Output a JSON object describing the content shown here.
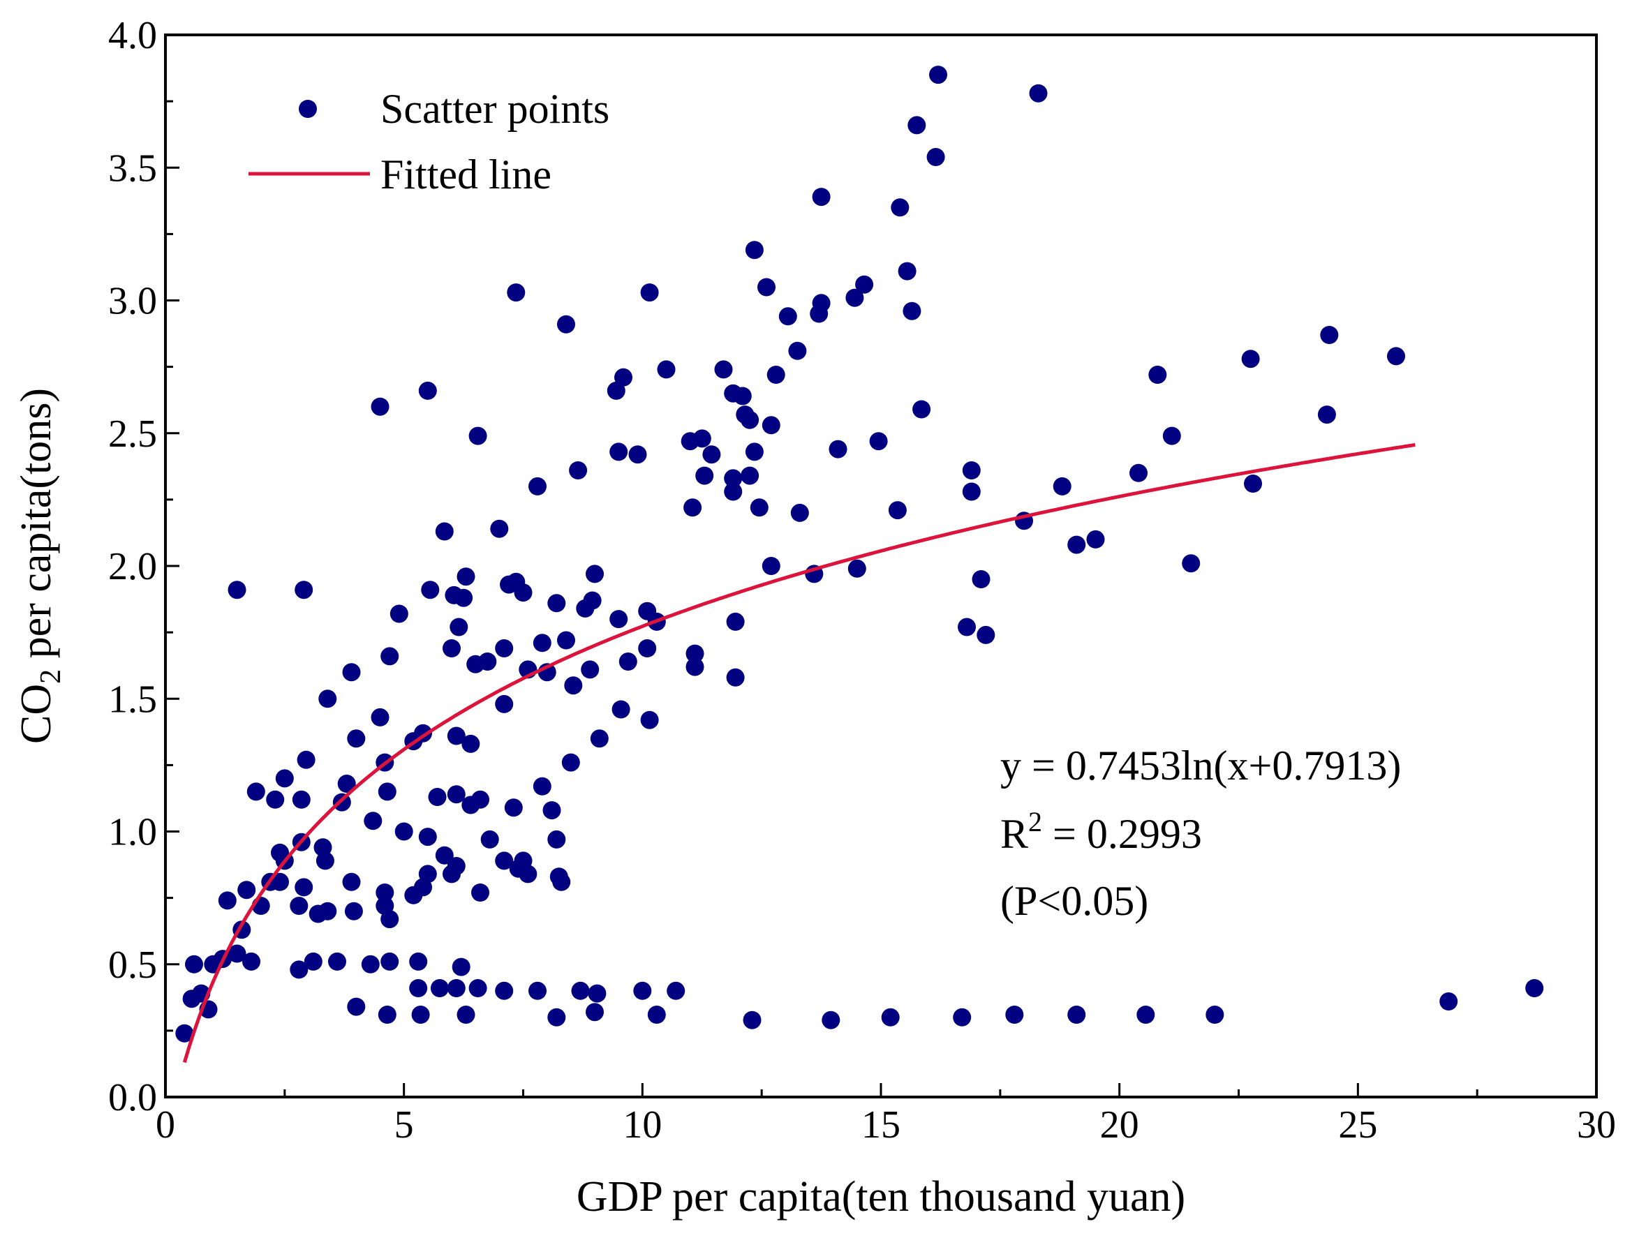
{
  "chart_data": {
    "type": "scatter",
    "xlabel": "GDP per capita(ten thousand yuan)",
    "ylabel_prefix": "CO",
    "ylabel_sub": "2",
    "ylabel_suffix": " per capita(tons)",
    "xlim": [
      0,
      30
    ],
    "ylim": [
      0,
      4.0
    ],
    "xticks": [
      "0",
      "5",
      "10",
      "15",
      "20",
      "25",
      "30"
    ],
    "yticks": [
      "0.0",
      "0.5",
      "1.0",
      "1.5",
      "2.0",
      "2.5",
      "3.0",
      "3.5",
      "4.0"
    ],
    "grid": false,
    "legend_position": "top-left",
    "colors": {
      "points": "#000080",
      "line": "#dc143c",
      "axes": "#000000"
    },
    "series": [
      {
        "name": "Scatter points",
        "kind": "scatter",
        "points": [
          [
            0.4,
            0.24
          ],
          [
            0.55,
            0.37
          ],
          [
            0.6,
            0.5
          ],
          [
            0.75,
            0.39
          ],
          [
            0.9,
            0.33
          ],
          [
            1.0,
            0.5
          ],
          [
            1.2,
            0.52
          ],
          [
            1.3,
            0.74
          ],
          [
            1.5,
            0.54
          ],
          [
            1.6,
            0.63
          ],
          [
            1.5,
            1.91
          ],
          [
            1.7,
            0.78
          ],
          [
            1.8,
            0.51
          ],
          [
            1.9,
            1.15
          ],
          [
            2.0,
            0.72
          ],
          [
            2.2,
            0.81
          ],
          [
            2.3,
            1.12
          ],
          [
            2.4,
            0.81
          ],
          [
            2.4,
            0.92
          ],
          [
            2.5,
            1.2
          ],
          [
            2.5,
            0.89
          ],
          [
            2.8,
            0.72
          ],
          [
            2.8,
            0.48
          ],
          [
            2.85,
            0.96
          ],
          [
            2.85,
            1.12
          ],
          [
            2.9,
            1.91
          ],
          [
            2.9,
            0.79
          ],
          [
            2.95,
            1.27
          ],
          [
            3.1,
            0.51
          ],
          [
            3.2,
            0.69
          ],
          [
            3.3,
            0.94
          ],
          [
            3.35,
            0.89
          ],
          [
            3.4,
            1.5
          ],
          [
            3.4,
            0.7
          ],
          [
            3.6,
            0.51
          ],
          [
            3.7,
            1.11
          ],
          [
            3.8,
            1.18
          ],
          [
            3.9,
            1.6
          ],
          [
            3.9,
            0.81
          ],
          [
            3.95,
            0.7
          ],
          [
            4.0,
            1.35
          ],
          [
            4.0,
            0.34
          ],
          [
            4.3,
            0.5
          ],
          [
            4.35,
            1.04
          ],
          [
            4.5,
            1.43
          ],
          [
            4.5,
            2.6
          ],
          [
            4.6,
            1.26
          ],
          [
            4.6,
            0.77
          ],
          [
            4.6,
            0.72
          ],
          [
            4.65,
            1.15
          ],
          [
            4.65,
            0.31
          ],
          [
            4.7,
            0.67
          ],
          [
            4.7,
            1.66
          ],
          [
            4.7,
            0.51
          ],
          [
            4.9,
            1.82
          ],
          [
            5.0,
            1.0
          ],
          [
            5.2,
            1.34
          ],
          [
            5.2,
            0.76
          ],
          [
            5.3,
            0.51
          ],
          [
            5.3,
            0.41
          ],
          [
            5.35,
            0.31
          ],
          [
            5.4,
            1.37
          ],
          [
            5.4,
            0.79
          ],
          [
            5.5,
            2.66
          ],
          [
            5.5,
            0.98
          ],
          [
            5.5,
            0.84
          ],
          [
            5.55,
            1.91
          ],
          [
            5.7,
            1.13
          ],
          [
            5.75,
            0.41
          ],
          [
            5.85,
            2.13
          ],
          [
            5.85,
            0.91
          ],
          [
            6.0,
            0.84
          ],
          [
            6.0,
            1.69
          ],
          [
            6.05,
            1.89
          ],
          [
            6.1,
            0.87
          ],
          [
            6.1,
            1.36
          ],
          [
            6.1,
            1.14
          ],
          [
            6.1,
            0.41
          ],
          [
            6.15,
            1.77
          ],
          [
            6.2,
            0.49
          ],
          [
            6.25,
            1.88
          ],
          [
            6.3,
            0.31
          ],
          [
            6.3,
            1.96
          ],
          [
            6.4,
            1.33
          ],
          [
            6.4,
            1.1
          ],
          [
            6.5,
            1.63
          ],
          [
            6.55,
            2.49
          ],
          [
            6.55,
            0.41
          ],
          [
            6.6,
            1.12
          ],
          [
            6.6,
            0.77
          ],
          [
            6.75,
            1.64
          ],
          [
            6.8,
            0.97
          ],
          [
            7.0,
            2.14
          ],
          [
            7.1,
            1.69
          ],
          [
            7.1,
            1.48
          ],
          [
            7.1,
            0.89
          ],
          [
            7.1,
            0.4
          ],
          [
            7.2,
            1.93
          ],
          [
            7.3,
            1.09
          ],
          [
            7.35,
            3.03
          ],
          [
            7.35,
            1.94
          ],
          [
            7.4,
            0.86
          ],
          [
            7.5,
            1.9
          ],
          [
            7.5,
            0.89
          ],
          [
            7.6,
            1.61
          ],
          [
            7.6,
            0.84
          ],
          [
            7.8,
            2.3
          ],
          [
            7.8,
            0.4
          ],
          [
            7.9,
            1.71
          ],
          [
            7.9,
            1.17
          ],
          [
            8.0,
            1.6
          ],
          [
            8.1,
            1.08
          ],
          [
            8.2,
            1.86
          ],
          [
            8.2,
            0.97
          ],
          [
            8.2,
            0.3
          ],
          [
            8.25,
            0.83
          ],
          [
            8.3,
            0.81
          ],
          [
            8.4,
            2.91
          ],
          [
            8.4,
            1.72
          ],
          [
            8.5,
            1.26
          ],
          [
            8.55,
            1.55
          ],
          [
            8.65,
            2.36
          ],
          [
            8.7,
            0.4
          ],
          [
            8.8,
            1.84
          ],
          [
            8.9,
            1.61
          ],
          [
            8.95,
            1.87
          ],
          [
            9.0,
            1.97
          ],
          [
            9.0,
            0.32
          ],
          [
            9.05,
            0.39
          ],
          [
            9.1,
            1.35
          ],
          [
            9.45,
            2.66
          ],
          [
            9.5,
            1.8
          ],
          [
            9.5,
            2.43
          ],
          [
            9.55,
            1.46
          ],
          [
            9.6,
            2.71
          ],
          [
            9.7,
            1.64
          ],
          [
            9.9,
            2.42
          ],
          [
            10.0,
            0.4
          ],
          [
            10.1,
            1.83
          ],
          [
            10.1,
            1.69
          ],
          [
            10.15,
            3.03
          ],
          [
            10.15,
            1.42
          ],
          [
            10.3,
            1.79
          ],
          [
            10.3,
            0.31
          ],
          [
            10.5,
            2.74
          ],
          [
            10.7,
            0.4
          ],
          [
            11.0,
            2.47
          ],
          [
            11.05,
            2.22
          ],
          [
            11.1,
            1.67
          ],
          [
            11.1,
            1.62
          ],
          [
            11.25,
            2.48
          ],
          [
            11.3,
            2.34
          ],
          [
            11.45,
            2.42
          ],
          [
            11.7,
            2.74
          ],
          [
            11.9,
            2.65
          ],
          [
            11.9,
            2.33
          ],
          [
            11.9,
            2.28
          ],
          [
            11.95,
            1.79
          ],
          [
            11.95,
            1.58
          ],
          [
            12.1,
            2.64
          ],
          [
            12.15,
            2.57
          ],
          [
            12.25,
            2.55
          ],
          [
            12.25,
            2.34
          ],
          [
            12.3,
            0.29
          ],
          [
            12.35,
            3.19
          ],
          [
            12.35,
            2.43
          ],
          [
            12.45,
            2.22
          ],
          [
            12.6,
            3.05
          ],
          [
            12.7,
            2.53
          ],
          [
            12.7,
            2.0
          ],
          [
            12.8,
            2.72
          ],
          [
            13.05,
            2.94
          ],
          [
            13.25,
            2.81
          ],
          [
            13.3,
            2.2
          ],
          [
            13.6,
            1.97
          ],
          [
            13.7,
            2.95
          ],
          [
            13.75,
            2.99
          ],
          [
            13.75,
            3.39
          ],
          [
            13.95,
            0.29
          ],
          [
            14.1,
            2.44
          ],
          [
            14.45,
            3.01
          ],
          [
            14.5,
            1.99
          ],
          [
            14.65,
            3.06
          ],
          [
            14.95,
            2.47
          ],
          [
            15.2,
            0.3
          ],
          [
            15.35,
            2.21
          ],
          [
            15.4,
            3.35
          ],
          [
            15.55,
            3.11
          ],
          [
            15.65,
            2.96
          ],
          [
            15.75,
            3.66
          ],
          [
            15.85,
            2.59
          ],
          [
            16.15,
            3.54
          ],
          [
            16.2,
            3.85
          ],
          [
            16.7,
            0.3
          ],
          [
            16.8,
            1.77
          ],
          [
            16.9,
            2.36
          ],
          [
            16.9,
            2.28
          ],
          [
            17.1,
            1.95
          ],
          [
            17.2,
            1.74
          ],
          [
            17.8,
            0.31
          ],
          [
            18.0,
            2.17
          ],
          [
            18.3,
            3.78
          ],
          [
            18.8,
            2.3
          ],
          [
            19.1,
            2.08
          ],
          [
            19.1,
            0.31
          ],
          [
            19.5,
            2.1
          ],
          [
            20.4,
            2.35
          ],
          [
            20.55,
            0.31
          ],
          [
            20.8,
            2.72
          ],
          [
            21.1,
            2.49
          ],
          [
            21.5,
            2.01
          ],
          [
            22.0,
            0.31
          ],
          [
            22.75,
            2.78
          ],
          [
            22.8,
            2.31
          ],
          [
            24.35,
            2.57
          ],
          [
            24.4,
            2.87
          ],
          [
            25.8,
            2.79
          ],
          [
            26.9,
            0.36
          ],
          [
            28.7,
            0.41
          ]
        ]
      },
      {
        "name": "Fitted line",
        "kind": "line",
        "equation": {
          "a": 0.7453,
          "b": 0.7913
        },
        "x_range": [
          0.4,
          26.2
        ]
      }
    ],
    "annotations": [
      "y = 0.7453ln(x+0.7913)",
      "R",
      "2",
      " = 0.2993",
      "(P<0.05)"
    ]
  }
}
